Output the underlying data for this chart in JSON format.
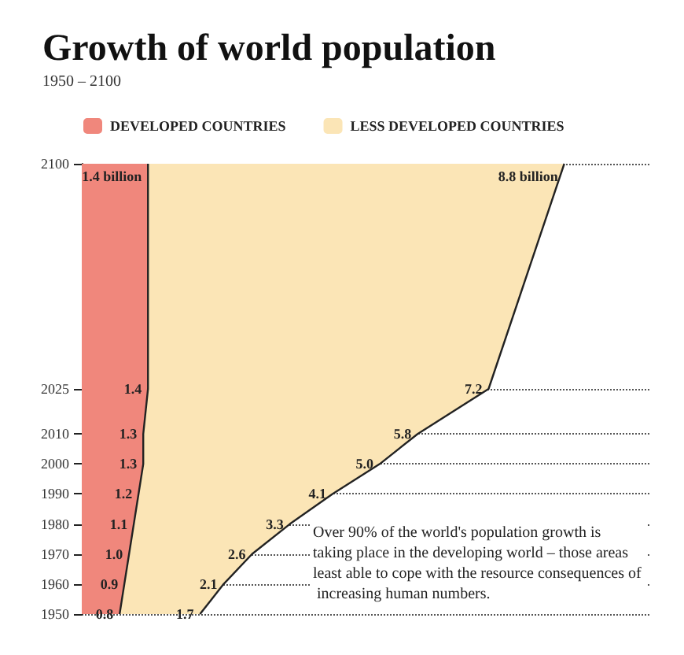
{
  "chart_data": {
    "type": "area",
    "title": "Growth of world population",
    "subtitle": "1950 – 2100",
    "orientation": "horizontal",
    "stacked": true,
    "tick_labels": "y",
    "x": [
      1950,
      1960,
      1970,
      1980,
      1990,
      2000,
      2010,
      2025,
      2100
    ],
    "ylim": [
      1950,
      2100
    ],
    "yticks": [
      1950,
      1960,
      1970,
      1980,
      1990,
      2000,
      2010,
      2025,
      2100
    ],
    "series": [
      {
        "name": "DEVELOPED COUNTRIES",
        "color": "#f0877c",
        "values": [
          0.8,
          0.9,
          1.0,
          1.1,
          1.2,
          1.3,
          1.3,
          1.4,
          1.4
        ],
        "value_labels": [
          "0.8",
          "0.9",
          "1.0",
          "1.1",
          "1.2",
          "1.3",
          "1.3",
          "1.4",
          "1.4 billion"
        ]
      },
      {
        "name": "LESS DEVELOPED COUNTRIES",
        "color": "#fbe5b6",
        "values": [
          1.7,
          2.1,
          2.6,
          3.3,
          4.1,
          5.0,
          5.8,
          7.2,
          8.8
        ],
        "value_labels": [
          "1.7",
          "2.1",
          "2.6",
          "3.3",
          "4.1",
          "5.0",
          "5.8",
          "7.2",
          "8.8 billion"
        ]
      }
    ],
    "grid": "y",
    "legend": "top",
    "annotations": [
      "Over 90% of the world's population growth is taking place in the developing world – those areas least able to cope with the resource consequences of increasing human numbers."
    ]
  }
}
